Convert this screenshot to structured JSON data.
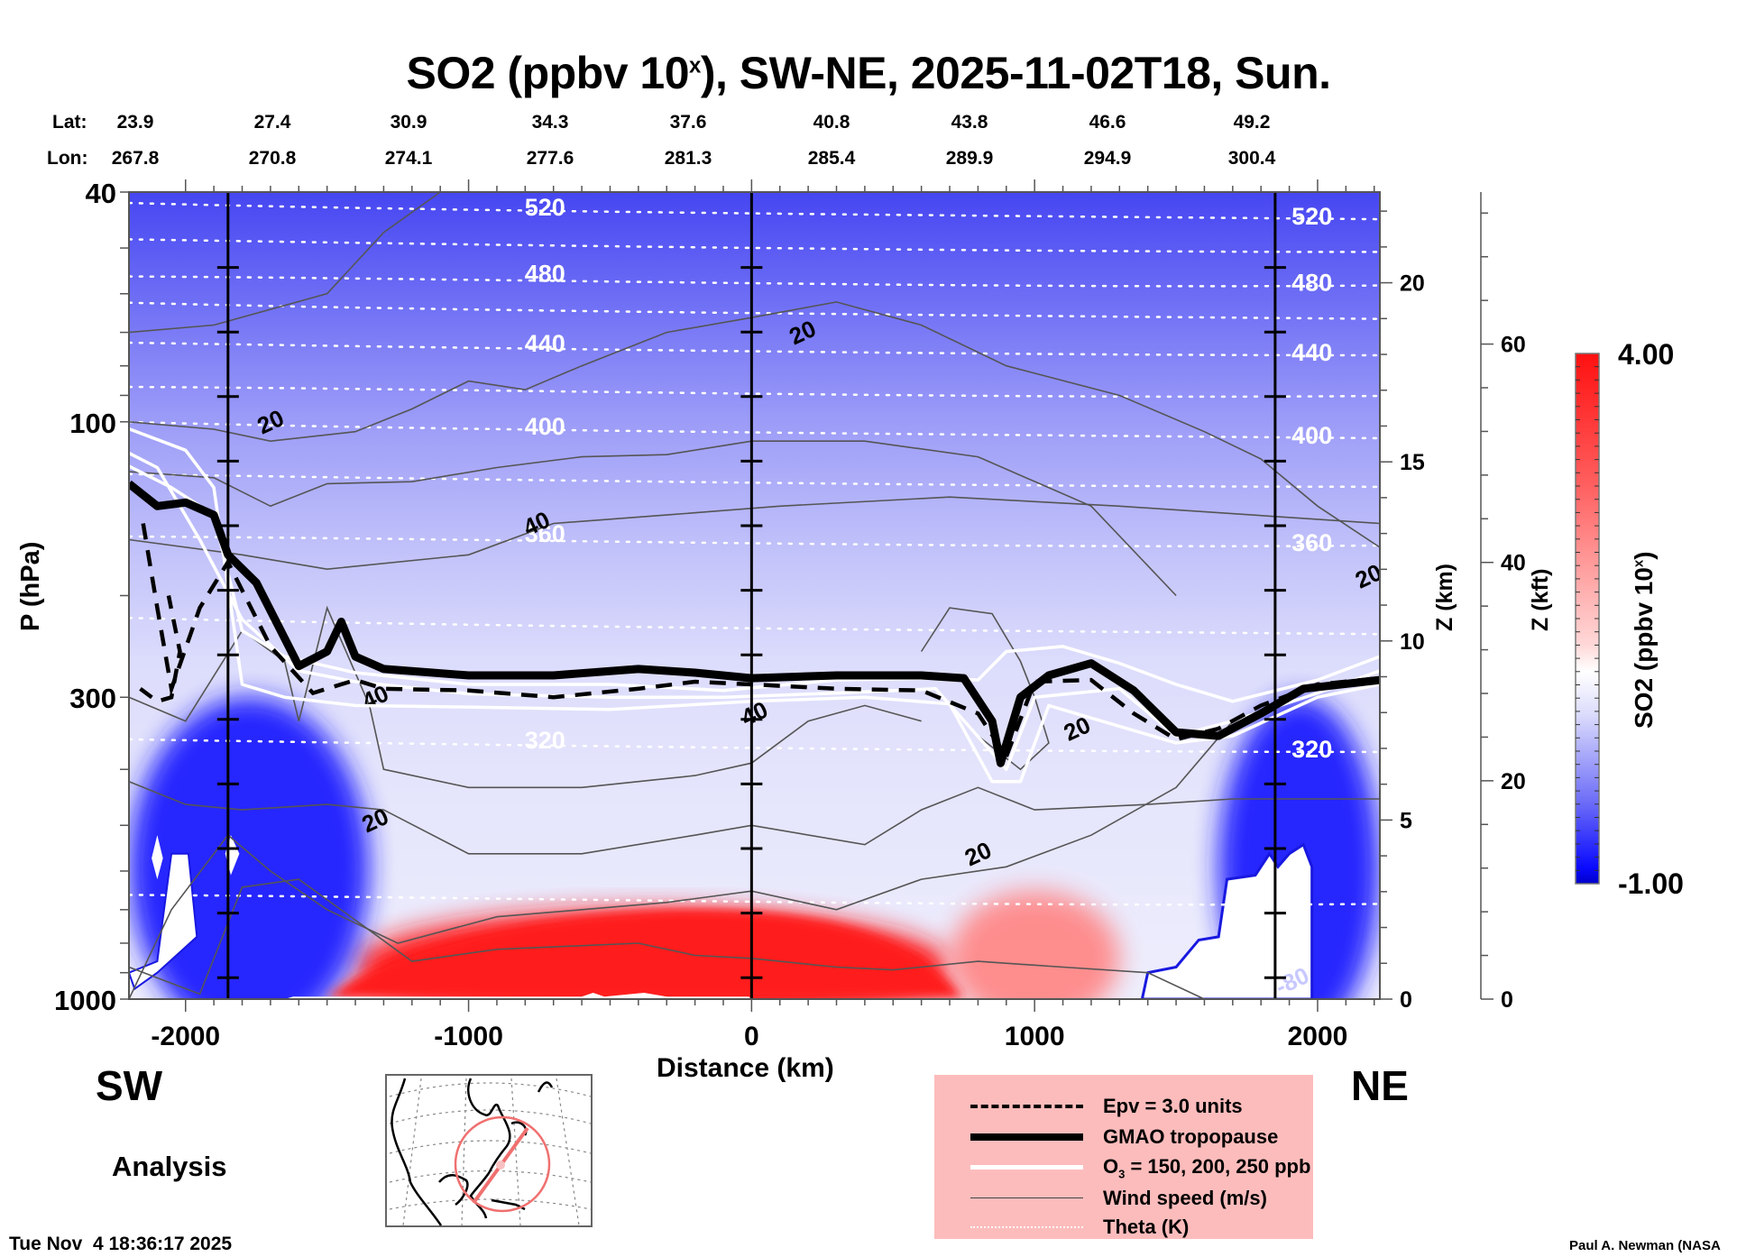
{
  "chart_data": {
    "type": "heatmap",
    "title": "SO2 (ppbv 10^x), SW-NE, 2025-11-02T18, Sun.",
    "title_parts": {
      "main": "SO2 (ppbv 10",
      "sup": "x",
      "rest": "), SW-NE, 2025-11-02T18, Sun."
    },
    "xlabel": "Distance (km)",
    "ylabel": "P (hPa)",
    "y2label": "Z (km)",
    "y3label": "Z (kft)",
    "xlim": [
      -2200,
      2220
    ],
    "ylim_hpa": [
      1000,
      40
    ],
    "yscale": "log",
    "x_ticks": [
      -2000,
      -1000,
      0,
      1000,
      2000
    ],
    "x_tick_labels": [
      "-2000",
      "-1000",
      "0",
      "1000",
      "2000"
    ],
    "y_ticks": [
      1000,
      300,
      100,
      40
    ],
    "y_tick_labels": [
      "1000",
      "300",
      "100",
      "40"
    ],
    "z_km_ticks": [
      0,
      5,
      10,
      15,
      20
    ],
    "z_kft_ticks": [
      0,
      20,
      40,
      60
    ],
    "lat_label": "Lat:",
    "lon_label": "Lon:",
    "lat_values": [
      "23.9",
      "27.4",
      "30.9",
      "34.3",
      "37.6",
      "40.8",
      "43.8",
      "46.6",
      "49.2"
    ],
    "lon_values": [
      "267.8",
      "270.8",
      "274.1",
      "277.6",
      "281.3",
      "285.4",
      "289.9",
      "294.9",
      "300.4"
    ],
    "vertical_markers_km": [
      -1850,
      0,
      1850
    ],
    "colorbar": {
      "label": "SO2 (ppbv 10^x)",
      "label_main": "SO2 (ppbv 10",
      "label_sup": "x",
      "label_end": ")",
      "min": -1.0,
      "max": 4.0,
      "min_label": "-1.00",
      "max_label": "4.00",
      "low_color": "#0000d8",
      "mid_color": "#ffffff",
      "high_color": "#ff1010",
      "levels": 40
    },
    "theta_contours_K": [
      {
        "value": 520,
        "label": "520",
        "p_hpa": 43
      },
      {
        "value": 500,
        "label": "",
        "p_hpa": 49
      },
      {
        "value": 480,
        "label": "480",
        "p_hpa": 56
      },
      {
        "value": 460,
        "label": "",
        "p_hpa": 64
      },
      {
        "value": 440,
        "label": "440",
        "p_hpa": 74
      },
      {
        "value": 420,
        "label": "",
        "p_hpa": 87
      },
      {
        "value": 400,
        "label": "400",
        "p_hpa": 103
      },
      {
        "value": 380,
        "label": "",
        "p_hpa": 125
      },
      {
        "value": 360,
        "label": "360",
        "p_hpa": 158
      },
      {
        "value": 340,
        "label": "",
        "p_hpa": 225
      },
      {
        "value": 320,
        "label": "320",
        "p_hpa": 360
      },
      {
        "value": 300,
        "label": "",
        "p_hpa": 660
      }
    ],
    "wind_labels": [
      {
        "text": "20",
        "x_km": -1700,
        "p_hpa": 100
      },
      {
        "text": "20",
        "x_km": 180,
        "p_hpa": 70
      },
      {
        "text": "40",
        "x_km": -760,
        "p_hpa": 150
      },
      {
        "text": "40",
        "x_km": -1330,
        "p_hpa": 300
      },
      {
        "text": "40",
        "x_km": 10,
        "p_hpa": 320
      },
      {
        "text": "20",
        "x_km": -1330,
        "p_hpa": 490
      },
      {
        "text": "20",
        "x_km": 800,
        "p_hpa": 560
      },
      {
        "text": "20",
        "x_km": 1150,
        "p_hpa": 340
      },
      {
        "text": "20",
        "x_km": 2180,
        "p_hpa": 185
      },
      {
        "text": "-80",
        "x_km": 1910,
        "p_hpa": 930
      }
    ],
    "tropopause_hpa": [
      [
        -2200,
        128
      ],
      [
        -2100,
        140
      ],
      [
        -2000,
        138
      ],
      [
        -1900,
        145
      ],
      [
        -1850,
        170
      ],
      [
        -1750,
        190
      ],
      [
        -1600,
        265
      ],
      [
        -1500,
        250
      ],
      [
        -1450,
        222
      ],
      [
        -1400,
        255
      ],
      [
        -1300,
        268
      ],
      [
        -1000,
        275
      ],
      [
        -700,
        275
      ],
      [
        -400,
        268
      ],
      [
        -200,
        272
      ],
      [
        0,
        278
      ],
      [
        300,
        275
      ],
      [
        600,
        275
      ],
      [
        750,
        278
      ],
      [
        850,
        330
      ],
      [
        880,
        390
      ],
      [
        950,
        300
      ],
      [
        1050,
        275
      ],
      [
        1200,
        262
      ],
      [
        1350,
        292
      ],
      [
        1500,
        345
      ],
      [
        1650,
        350
      ],
      [
        1800,
        320
      ],
      [
        1950,
        290
      ],
      [
        2220,
        280
      ]
    ],
    "epv_hpa": [
      [
        -2150,
        150
      ],
      [
        -2100,
        210
      ],
      [
        -2050,
        290
      ],
      [
        -1950,
        210
      ],
      [
        -1850,
        175
      ],
      [
        -1700,
        245
      ],
      [
        -1550,
        295
      ],
      [
        -1400,
        280
      ],
      [
        -1300,
        290
      ],
      [
        -1000,
        292
      ],
      [
        -700,
        300
      ],
      [
        -400,
        290
      ],
      [
        -200,
        282
      ],
      [
        0,
        285
      ],
      [
        300,
        290
      ],
      [
        600,
        292
      ],
      [
        800,
        320
      ],
      [
        900,
        380
      ],
      [
        1000,
        282
      ],
      [
        1200,
        280
      ],
      [
        1350,
        320
      ],
      [
        1500,
        355
      ],
      [
        1650,
        340
      ],
      [
        1800,
        310
      ],
      [
        2000,
        285
      ],
      [
        2220,
        278
      ]
    ],
    "o3_contours_hpa": [
      [
        [
          -2220,
          118
        ],
        [
          -2050,
          130
        ],
        [
          -1900,
          145
        ],
        [
          -1800,
          230
        ],
        [
          -1650,
          255
        ],
        [
          -1400,
          272
        ],
        [
          -1000,
          285
        ],
        [
          -500,
          285
        ],
        [
          -100,
          292
        ],
        [
          300,
          280
        ],
        [
          650,
          278
        ],
        [
          800,
          280
        ],
        [
          900,
          250
        ],
        [
          1100,
          245
        ],
        [
          1300,
          262
        ],
        [
          1500,
          285
        ],
        [
          1700,
          305
        ],
        [
          2000,
          280
        ],
        [
          2220,
          255
        ]
      ],
      [
        [
          -2220,
          112
        ],
        [
          -2100,
          120
        ],
        [
          -1950,
          160
        ],
        [
          -1800,
          220
        ],
        [
          -1600,
          270
        ],
        [
          -1400,
          282
        ],
        [
          -1000,
          296
        ],
        [
          -500,
          300
        ],
        [
          -100,
          300
        ],
        [
          300,
          295
        ],
        [
          650,
          290
        ],
        [
          820,
          360
        ],
        [
          900,
          400
        ],
        [
          1000,
          300
        ],
        [
          1300,
          290
        ],
        [
          1500,
          350
        ],
        [
          1700,
          330
        ],
        [
          2000,
          295
        ],
        [
          2220,
          270
        ]
      ],
      [
        [
          -2220,
          102
        ],
        [
          -2000,
          112
        ],
        [
          -1900,
          130
        ],
        [
          -1800,
          285
        ],
        [
          -1650,
          300
        ],
        [
          -1400,
          310
        ],
        [
          -1000,
          312
        ],
        [
          -500,
          315
        ],
        [
          0,
          305
        ],
        [
          400,
          300
        ],
        [
          700,
          308
        ],
        [
          850,
          420
        ],
        [
          950,
          420
        ],
        [
          1050,
          310
        ],
        [
          1500,
          360
        ],
        [
          1700,
          350
        ],
        [
          2000,
          300
        ],
        [
          2220,
          285
        ]
      ]
    ],
    "so2_regions": [
      {
        "desc": "stratosphere",
        "x_km": [
          -2200,
          2220
        ],
        "p_hpa": [
          40,
          260
        ],
        "value": -0.3
      },
      {
        "desc": "upper troposphere",
        "x_km": [
          -2200,
          2220
        ],
        "p_hpa": [
          260,
          600
        ],
        "value": 0.2
      },
      {
        "desc": "boundary layer plume",
        "x_km": [
          -1400,
          700
        ],
        "p_hpa": [
          700,
          1000
        ],
        "value": 3.9
      },
      {
        "desc": "secondary plume",
        "x_km": [
          700,
          1300
        ],
        "p_hpa": [
          650,
          1000
        ],
        "value": 2.5
      },
      {
        "desc": "SW lower-tropo low",
        "x_km": [
          -2200,
          -1350
        ],
        "p_hpa": [
          300,
          900
        ],
        "value": -0.8
      },
      {
        "desc": "NE lower-tropo low",
        "x_km": [
          1650,
          2220
        ],
        "p_hpa": [
          300,
          900
        ],
        "value": -0.8
      }
    ]
  },
  "labels": {
    "sw": "SW",
    "ne": "NE",
    "analysis": "Analysis",
    "timestamp": "Tue Nov  4 18:36:17 2025",
    "credit": "Paul A. Newman (NASA"
  },
  "legend": {
    "items": [
      {
        "label": "Epv = 3.0 units",
        "style": "dashed"
      },
      {
        "label": "GMAO tropopause",
        "style": "thick"
      },
      {
        "label_main": "O",
        "label_sub": "3",
        "label_rest": " = 150, 200, 250 ppb",
        "style": "white"
      },
      {
        "label": "Wind speed (m/s)",
        "style": "thin"
      },
      {
        "label": "Theta (K)",
        "style": "dotted"
      }
    ],
    "background": "#fdbcbc"
  },
  "inset_map": {
    "description": "Locator map of North America with SW-NE transect line and range circle",
    "track_color": "#f07070"
  }
}
